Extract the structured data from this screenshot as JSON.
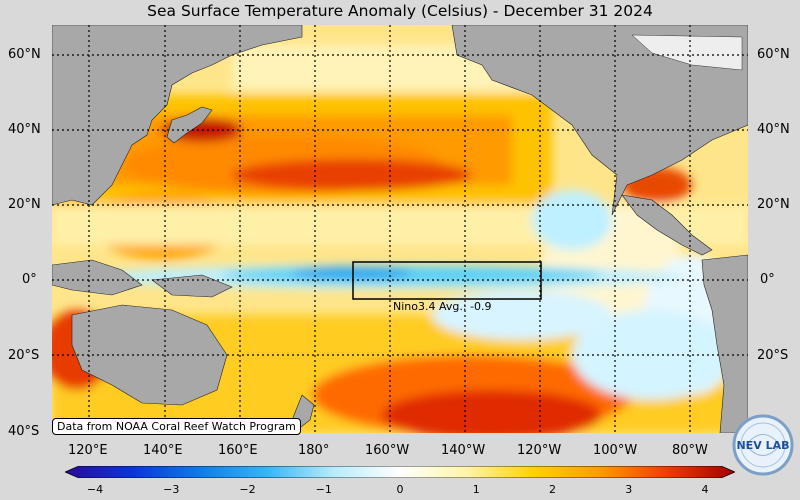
{
  "title": "Sea Surface Temperature Anomaly (Celsius) - December 31 2024",
  "lat_labels": [
    "60°N",
    "40°N",
    "20°N",
    "0°",
    "20°S",
    "40°S"
  ],
  "lon_labels": [
    "120°E",
    "140°E",
    "160°E",
    "180°",
    "160°W",
    "140°W",
    "120°W",
    "100°W",
    "80°W"
  ],
  "nino_box": {
    "label": "Nino3.4 Avg.: -0.9"
  },
  "credit": "Data from NOAA Coral Reef Watch Program",
  "colorbar": {
    "ticks": [
      "−4",
      "−3",
      "−2",
      "−1",
      "0",
      "1",
      "2",
      "3",
      "4"
    ],
    "colors": [
      "#2a0a9a",
      "#0b34d8",
      "#0f7be8",
      "#35b5f5",
      "#b6ecfb",
      "#ffffff",
      "#fff4a8",
      "#ffd200",
      "#ff9a00",
      "#f03a00",
      "#a00000"
    ]
  },
  "logo": {
    "text": "NEV LAB"
  },
  "colors": {
    "land": "#a8a8a8",
    "ocean_neutral": "#fff6c8",
    "cool": "#5ad0f5",
    "warm": "#ff8a00",
    "hot": "#c81800"
  }
}
